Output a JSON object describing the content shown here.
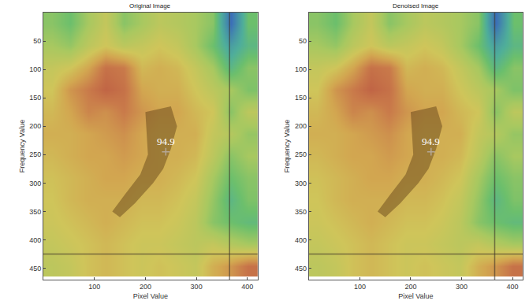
{
  "chart_data": [
    {
      "type": "heatmap",
      "title": "Original Image",
      "x_label": "Pixel Value",
      "y_label": "Frequency Value",
      "x": [
        17.5,
        52.5,
        87.5,
        122.5,
        157.5,
        192.5,
        227.5,
        262.5,
        297.5,
        332.5,
        367.5,
        402.5
      ],
      "y": [
        19,
        58,
        97,
        136,
        175,
        214,
        252,
        291,
        330,
        369,
        408,
        446
      ],
      "z": [
        [
          50,
          45,
          55,
          62,
          50,
          55,
          60,
          58,
          55,
          50,
          15,
          45
        ],
        [
          55,
          52,
          60,
          65,
          60,
          62,
          65,
          62,
          55,
          45,
          30,
          40
        ],
        [
          62,
          65,
          72,
          82,
          80,
          68,
          70,
          68,
          62,
          55,
          40,
          50
        ],
        [
          65,
          75,
          80,
          85,
          82,
          72,
          70,
          70,
          65,
          60,
          55,
          48
        ],
        [
          68,
          72,
          78,
          76,
          80,
          75,
          72,
          72,
          68,
          65,
          50,
          60
        ],
        [
          70,
          70,
          72,
          74,
          76,
          72,
          70,
          70,
          70,
          62,
          58,
          52
        ],
        [
          68,
          70,
          72,
          72,
          74,
          72,
          70,
          70,
          68,
          60,
          50,
          55
        ],
        [
          66,
          68,
          70,
          72,
          72,
          70,
          70,
          68,
          65,
          55,
          45,
          50
        ],
        [
          65,
          68,
          70,
          70,
          70,
          68,
          68,
          66,
          62,
          52,
          40,
          48
        ],
        [
          64,
          66,
          68,
          70,
          68,
          66,
          66,
          64,
          60,
          50,
          45,
          42
        ],
        [
          62,
          64,
          66,
          68,
          66,
          64,
          64,
          62,
          60,
          62,
          58,
          55
        ],
        [
          60,
          62,
          66,
          68,
          66,
          64,
          66,
          64,
          62,
          70,
          75,
          82
        ]
      ],
      "zlim": [
        0,
        100
      ],
      "xlim": [
        0,
        420
      ],
      "ylim": [
        470,
        0
      ],
      "xticks": [
        100,
        200,
        300,
        400
      ],
      "yticks": [
        50,
        100,
        150,
        200,
        250,
        300,
        350,
        400,
        450
      ],
      "annotations": [
        {
          "text": "94.9",
          "x": 240,
          "y": 245
        }
      ]
    },
    {
      "type": "heatmap",
      "title": "Denoised Image",
      "x_label": "Pixel Value",
      "y_label": "Frequency Value",
      "x": [
        17.5,
        52.5,
        87.5,
        122.5,
        157.5,
        192.5,
        227.5,
        262.5,
        297.5,
        332.5,
        367.5,
        402.5
      ],
      "y": [
        19,
        58,
        97,
        136,
        175,
        214,
        252,
        291,
        330,
        369,
        408,
        446
      ],
      "z": [
        [
          50,
          45,
          55,
          62,
          50,
          55,
          60,
          58,
          55,
          50,
          15,
          45
        ],
        [
          55,
          52,
          60,
          65,
          60,
          62,
          65,
          62,
          55,
          45,
          30,
          40
        ],
        [
          62,
          65,
          72,
          82,
          80,
          68,
          70,
          68,
          62,
          55,
          40,
          50
        ],
        [
          65,
          75,
          80,
          85,
          82,
          72,
          70,
          70,
          65,
          60,
          55,
          48
        ],
        [
          68,
          72,
          78,
          76,
          80,
          75,
          72,
          72,
          68,
          65,
          50,
          60
        ],
        [
          70,
          70,
          72,
          74,
          76,
          72,
          70,
          70,
          70,
          62,
          58,
          52
        ],
        [
          68,
          70,
          72,
          72,
          74,
          72,
          70,
          70,
          68,
          60,
          50,
          55
        ],
        [
          66,
          68,
          70,
          72,
          72,
          70,
          70,
          68,
          65,
          55,
          45,
          50
        ],
        [
          65,
          68,
          70,
          70,
          70,
          68,
          68,
          66,
          62,
          52,
          40,
          48
        ],
        [
          64,
          66,
          68,
          70,
          68,
          66,
          66,
          64,
          60,
          50,
          45,
          42
        ],
        [
          62,
          64,
          66,
          68,
          66,
          64,
          64,
          62,
          60,
          62,
          58,
          55
        ],
        [
          60,
          62,
          66,
          68,
          66,
          64,
          66,
          64,
          62,
          70,
          75,
          82
        ]
      ],
      "zlim": [
        0,
        100
      ],
      "xlim": [
        0,
        420
      ],
      "ylim": [
        470,
        0
      ],
      "xticks": [
        100,
        200,
        300,
        400
      ],
      "yticks": [
        50,
        100,
        150,
        200,
        250,
        300,
        350,
        400,
        450
      ],
      "annotations": [
        {
          "text": "94.9",
          "x": 240,
          "y": 245
        }
      ]
    }
  ]
}
